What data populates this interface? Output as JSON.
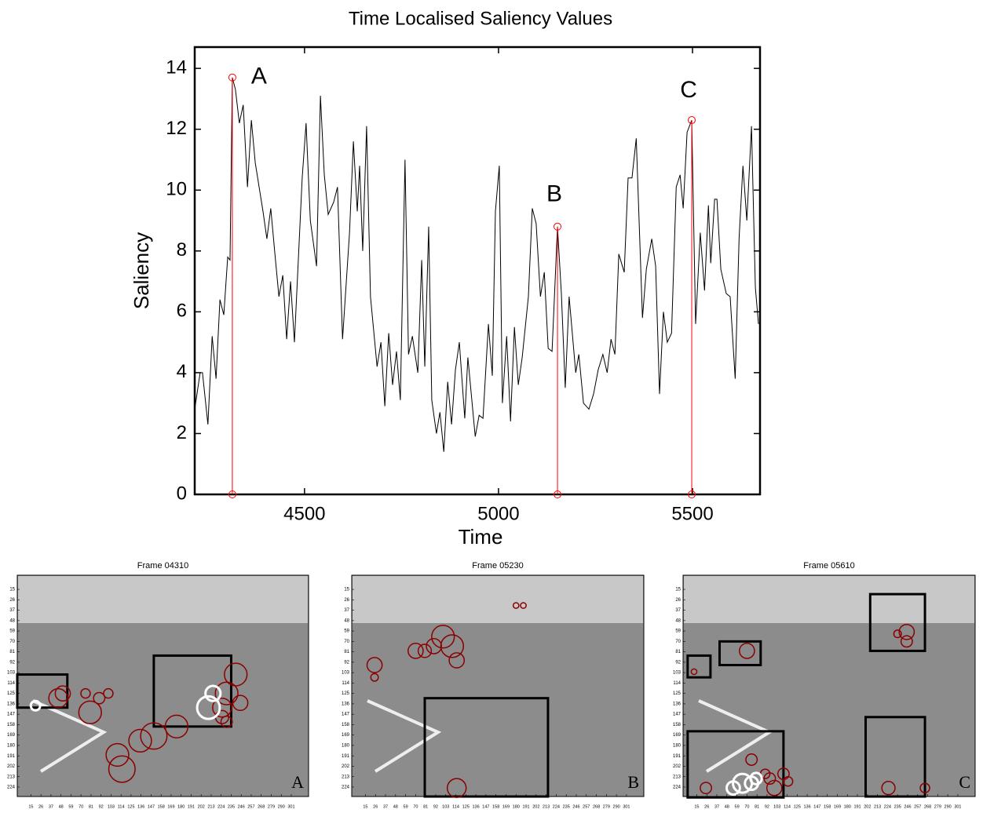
{
  "chart_data": {
    "type": "line",
    "title": "Time Localised Saliency Values",
    "x_label": "Time",
    "y_label": "Saliency",
    "x": [
      4217,
      4231,
      4237,
      4251,
      4262,
      4272,
      4282,
      4292,
      4302,
      4308,
      4314,
      4322,
      4332,
      4342,
      4353,
      4363,
      4373,
      4393,
      4403,
      4413,
      4423,
      4434,
      4444,
      4454,
      4464,
      4474,
      4494,
      4504,
      4515,
      4531,
      4541,
      4551,
      4561,
      4575,
      4585,
      4598,
      4616,
      4626,
      4636,
      4642,
      4650,
      4660,
      4670,
      4687,
      4697,
      4707,
      4717,
      4727,
      4737,
      4747,
      4759,
      4768,
      4778,
      4792,
      4802,
      4810,
      4820,
      4828,
      4840,
      4849,
      4859,
      4869,
      4879,
      4889,
      4899,
      4913,
      4921,
      4940,
      4950,
      4960,
      4974,
      4984,
      4992,
      5002,
      5010,
      5021,
      5031,
      5041,
      5051,
      5061,
      5077,
      5087,
      5097,
      5108,
      5118,
      5128,
      5138,
      5152,
      5162,
      5172,
      5182,
      5199,
      5207,
      5219,
      5233,
      5245,
      5257,
      5269,
      5280,
      5290,
      5300,
      5310,
      5324,
      5334,
      5344,
      5355,
      5371,
      5381,
      5395,
      5405,
      5415,
      5425,
      5435,
      5446,
      5458,
      5468,
      5476,
      5486,
      5498,
      5508,
      5520,
      5531,
      5541,
      5547,
      5557,
      5563,
      5573,
      5587,
      5597,
      5610,
      5620,
      5630,
      5640,
      5652,
      5662,
      5670
    ],
    "values": [
      2.8,
      4.0,
      4.0,
      2.3,
      5.2,
      3.8,
      6.4,
      5.9,
      7.8,
      7.7,
      13.7,
      13.3,
      12.2,
      12.8,
      10.1,
      12.3,
      10.9,
      9.3,
      8.4,
      9.4,
      8.0,
      6.5,
      7.2,
      5.1,
      7.0,
      5.0,
      10.4,
      12.2,
      9.0,
      7.5,
      13.1,
      10.5,
      9.2,
      9.6,
      10.1,
      5.1,
      8.6,
      11.6,
      9.3,
      10.8,
      8.0,
      12.1,
      6.5,
      4.2,
      5.0,
      2.9,
      5.3,
      3.6,
      4.7,
      3.1,
      11.0,
      4.6,
      5.2,
      4.0,
      7.7,
      4.2,
      8.8,
      3.1,
      2.0,
      2.7,
      1.4,
      3.7,
      2.3,
      4.1,
      5.0,
      2.5,
      4.5,
      1.9,
      2.6,
      2.5,
      5.6,
      3.9,
      9.3,
      10.8,
      3.0,
      5.2,
      2.4,
      5.5,
      3.6,
      4.5,
      6.5,
      9.4,
      8.9,
      6.5,
      7.3,
      4.8,
      4.7,
      8.8,
      6.6,
      3.5,
      6.5,
      4.0,
      4.6,
      3.0,
      2.8,
      3.3,
      4.1,
      4.6,
      4.0,
      5.1,
      4.6,
      7.9,
      7.3,
      10.4,
      10.4,
      11.7,
      5.8,
      7.4,
      8.4,
      7.5,
      3.3,
      6.0,
      5.0,
      5.3,
      10.1,
      10.5,
      9.4,
      11.9,
      12.3,
      5.6,
      8.6,
      6.7,
      9.5,
      7.6,
      9.7,
      9.7,
      7.4,
      6.6,
      6.5,
      3.8,
      8.4,
      10.8,
      9.0,
      12.1,
      6.8,
      5.6
    ],
    "color": "#000000",
    "xlim": [
      4217,
      5674
    ],
    "ylim": [
      0,
      14.7
    ],
    "xticks": [
      4500,
      5000,
      5500
    ],
    "yticks": [
      0,
      2,
      4,
      6,
      8,
      10,
      12,
      14
    ],
    "annotations": [
      {
        "label": "A",
        "x": 4314,
        "y": 13.7
      },
      {
        "label": "B",
        "x": 5152,
        "y": 8.8
      },
      {
        "label": "C",
        "x": 5498,
        "y": 12.3
      }
    ],
    "annotation_color": "#ff0000"
  },
  "frames": [
    {
      "title": "Frame 04310",
      "label": "A"
    },
    {
      "title": "Frame 05230",
      "label": "B"
    },
    {
      "title": "Frame 05610",
      "label": "C"
    }
  ],
  "frame_axes": {
    "xlim": [
      0,
      320
    ],
    "ylim": [
      0,
      234
    ],
    "xticks": [
      15,
      26,
      37,
      48,
      59,
      70,
      81,
      92,
      103,
      114,
      125,
      136,
      147,
      158,
      169,
      180,
      191,
      202,
      213,
      224,
      235,
      246,
      257,
      268,
      279,
      290,
      301
    ],
    "yticks": [
      15,
      26,
      37,
      48,
      59,
      70,
      81,
      92,
      103,
      114,
      125,
      136,
      147,
      158,
      169,
      180,
      191,
      202,
      213,
      224
    ]
  }
}
